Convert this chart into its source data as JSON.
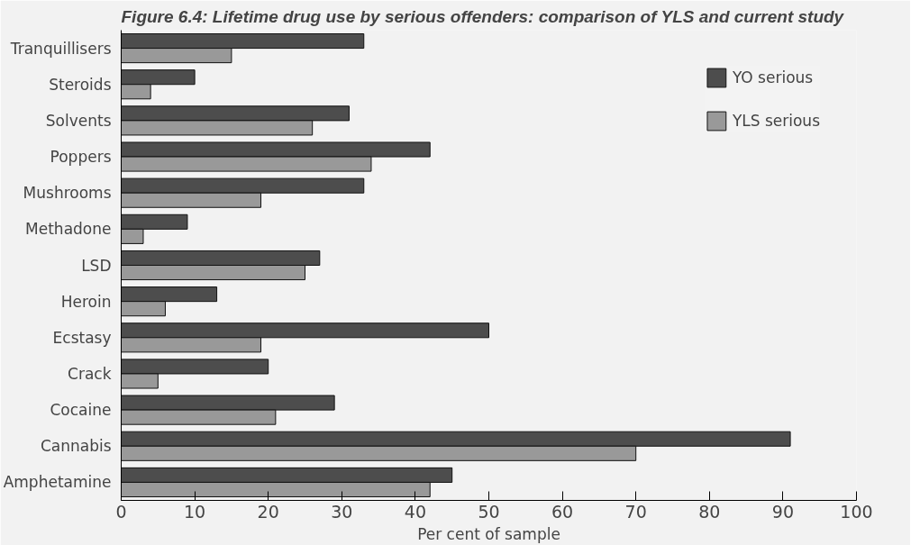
{
  "chart_data": {
    "type": "bar",
    "orientation": "horizontal",
    "title": "Figure 6.4:     Lifetime drug use by serious offenders: comparison of YLS and current study",
    "xlabel": "Per cent of sample",
    "categories": [
      "Tranquillisers",
      "Steroids",
      "Solvents",
      "Poppers",
      "Mushrooms",
      "Methadone",
      "LSD",
      "Heroin",
      "Ecstasy",
      "Crack",
      "Cocaine",
      "Cannabis",
      "Amphetamine"
    ],
    "series": [
      {
        "name": "YO serious",
        "color": "#4d4d4d",
        "values": [
          33,
          10,
          31,
          42,
          33,
          9,
          27,
          13,
          50,
          20,
          29,
          91,
          45
        ]
      },
      {
        "name": "YLS serious",
        "color": "#999999",
        "values": [
          15,
          4,
          26,
          34,
          19,
          3,
          25,
          6,
          19,
          5,
          21,
          70,
          42
        ]
      }
    ],
    "xlim": [
      0,
      100
    ],
    "xticks": [
      0,
      10,
      20,
      30,
      40,
      50,
      60,
      70,
      80,
      90,
      100
    ],
    "grid": false,
    "legend": "top right"
  }
}
